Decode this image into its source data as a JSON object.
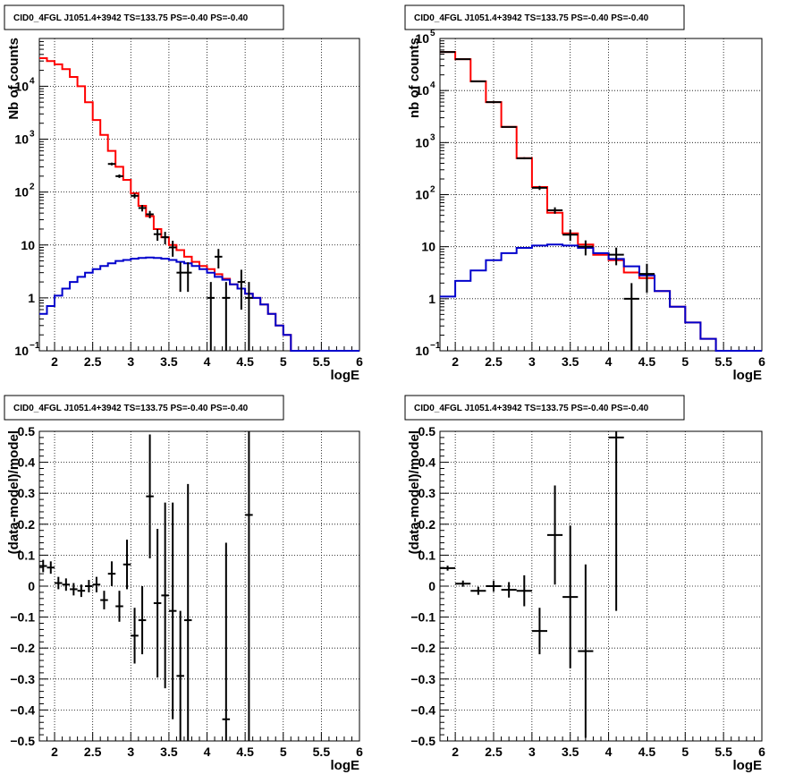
{
  "colors": {
    "data": "#000000",
    "total": "#ff0000",
    "source": "#0000cc",
    "grid": "#000000"
  },
  "chart_data": [
    {
      "type": "line",
      "title": "CID0_4FGL J1051.4+3942 TS=133.75 PS=-0.40 PS=-0.40",
      "xlabel": "logE",
      "ylabel": "Nb of counts",
      "xlim": [
        1.8,
        6
      ],
      "ylim": [
        0.1,
        80000
      ],
      "yscale": "log",
      "grid": true,
      "bin_edges": [
        1.8,
        1.9,
        2.0,
        2.1,
        2.2,
        2.3,
        2.4,
        2.5,
        2.6,
        2.7,
        2.8,
        2.9,
        3.0,
        3.1,
        3.2,
        3.3,
        3.4,
        3.5,
        3.6,
        3.7,
        3.8,
        3.9,
        4.0,
        4.1,
        4.2,
        4.3,
        4.4,
        4.5,
        4.6,
        4.7,
        4.8,
        4.9,
        5.0,
        5.1,
        5.2,
        5.3,
        5.4,
        5.5,
        5.6,
        5.7,
        5.8,
        5.9,
        6.0
      ],
      "xticks": [
        2,
        2.5,
        3,
        3.5,
        4,
        4.5,
        5,
        5.5,
        6
      ],
      "yticks": [
        {
          "v": 0.1,
          "label": "10",
          "exp": "−1"
        },
        {
          "v": 1,
          "label": "1",
          "exp": ""
        },
        {
          "v": 10,
          "label": "10",
          "exp": ""
        },
        {
          "v": 100,
          "label": "10",
          "exp": "2"
        },
        {
          "v": 1000,
          "label": "10",
          "exp": "3"
        },
        {
          "v": 10000,
          "label": "10",
          "exp": "4"
        }
      ],
      "series": [
        {
          "role": "total",
          "values": [
            34000,
            30000,
            26000,
            21000,
            15000,
            10000,
            5000,
            2300,
            1200,
            600,
            300,
            170,
            95,
            55,
            35,
            20,
            14,
            10,
            8,
            6,
            4.8,
            4,
            3.5,
            2.8,
            2.3,
            1.8,
            1.5,
            1.2,
            1.0,
            0.75,
            0.5,
            0.3,
            0.2,
            0.1,
            0.1,
            0.1,
            0.1,
            0.1,
            0.1,
            0.1,
            0.1,
            0.1
          ]
        },
        {
          "role": "source",
          "values": [
            0.5,
            0.7,
            1.1,
            1.5,
            2.0,
            2.5,
            3.0,
            3.5,
            4.0,
            4.5,
            5.0,
            5.2,
            5.5,
            5.7,
            5.8,
            5.7,
            5.5,
            5.2,
            4.8,
            4.5,
            4.0,
            3.5,
            3.0,
            2.5,
            2.2,
            1.8,
            1.5,
            1.2,
            1.0,
            0.75,
            0.5,
            0.3,
            0.2,
            0.1,
            0.1,
            0.1,
            0.1,
            0.1,
            0.1,
            0.1,
            0.1,
            0.1
          ]
        }
      ],
      "points": [
        {
          "x": 2.75,
          "y": 340,
          "err": 20
        },
        {
          "x": 2.85,
          "y": 200,
          "err": 15
        },
        {
          "x": 3.05,
          "y": 85,
          "err": 9
        },
        {
          "x": 3.15,
          "y": 50,
          "err": 7
        },
        {
          "x": 3.25,
          "y": 38,
          "err": 6
        },
        {
          "x": 3.35,
          "y": 16,
          "err": 4
        },
        {
          "x": 3.45,
          "y": 14,
          "err": 3.7
        },
        {
          "x": 3.55,
          "y": 9,
          "err": 3
        },
        {
          "x": 3.65,
          "y": 3,
          "err": 1.7
        },
        {
          "x": 3.75,
          "y": 3,
          "err": 1.7
        },
        {
          "x": 4.05,
          "y": 1,
          "err": 1
        },
        {
          "x": 4.15,
          "y": 6,
          "err": 2.4
        },
        {
          "x": 4.25,
          "y": 1,
          "err": 1
        },
        {
          "x": 4.45,
          "y": 2,
          "err": 1.4
        },
        {
          "x": 4.55,
          "y": 1,
          "err": 1
        }
      ]
    },
    {
      "type": "line",
      "title": "CID0_4FGL J1051.4+3942 TS=133.75 PS=-0.40 PS=-0.40",
      "xlabel": "logE",
      "ylabel": "nb of counts",
      "xlim": [
        1.8,
        6
      ],
      "ylim": [
        0.1,
        100000
      ],
      "yscale": "log",
      "grid": true,
      "bin_edges": [
        1.8,
        2.0,
        2.2,
        2.4,
        2.6,
        2.8,
        3.0,
        3.2,
        3.4,
        3.6,
        3.8,
        4.0,
        4.2,
        4.4,
        4.6,
        4.8,
        5.0,
        5.2,
        5.4,
        5.6,
        5.8,
        6.0
      ],
      "xticks": [
        2,
        2.5,
        3,
        3.5,
        4,
        4.5,
        5,
        5.5,
        6
      ],
      "yticks": [
        {
          "v": 0.1,
          "label": "10",
          "exp": "−1"
        },
        {
          "v": 1,
          "label": "1",
          "exp": ""
        },
        {
          "v": 10,
          "label": "10",
          "exp": ""
        },
        {
          "v": 100,
          "label": "10",
          "exp": "2"
        },
        {
          "v": 1000,
          "label": "10",
          "exp": "3"
        },
        {
          "v": 10000,
          "label": "10",
          "exp": "4"
        },
        {
          "v": 100000,
          "label": "10",
          "exp": "5"
        }
      ],
      "series": [
        {
          "role": "total",
          "values": [
            55000,
            40000,
            15000,
            6000,
            2000,
            500,
            140,
            45,
            18,
            11,
            7,
            5.5,
            3.2,
            2.5,
            1.4,
            0.7,
            0.35,
            0.17,
            0.1,
            0.1,
            0.1
          ]
        },
        {
          "role": "source",
          "values": [
            1.1,
            2.2,
            3.5,
            5.5,
            7.5,
            9.5,
            10.5,
            11,
            10.5,
            9.5,
            7.5,
            5.8,
            4.2,
            2.8,
            1.4,
            0.7,
            0.35,
            0.17,
            0.1,
            0.1,
            0.1
          ]
        }
      ],
      "points": [
        {
          "x": 1.9,
          "y": 55000,
          "err": 235
        },
        {
          "x": 2.1,
          "y": 40000,
          "err": 200
        },
        {
          "x": 2.3,
          "y": 15000,
          "err": 122
        },
        {
          "x": 2.5,
          "y": 6000,
          "err": 77
        },
        {
          "x": 2.7,
          "y": 2000,
          "err": 45
        },
        {
          "x": 2.9,
          "y": 500,
          "err": 22
        },
        {
          "x": 3.1,
          "y": 135,
          "err": 12
        },
        {
          "x": 3.3,
          "y": 50,
          "err": 7
        },
        {
          "x": 3.5,
          "y": 17,
          "err": 4.1
        },
        {
          "x": 3.7,
          "y": 10,
          "err": 3.2
        },
        {
          "x": 4.1,
          "y": 7,
          "err": 2.6
        },
        {
          "x": 4.3,
          "y": 1,
          "err": 1
        },
        {
          "x": 4.5,
          "y": 3,
          "err": 1.7
        }
      ]
    },
    {
      "type": "scatter",
      "title": "CID0_4FGL J1051.4+3942 TS=133.75 PS=-0.40 PS=-0.40",
      "xlabel": "logE",
      "ylabel": "(data-model)/model",
      "xlim": [
        1.8,
        6
      ],
      "ylim": [
        -0.5,
        0.5
      ],
      "yscale": "linear",
      "grid": true,
      "binwidth": 0.1,
      "xticks": [
        2,
        2.5,
        3,
        3.5,
        4,
        4.5,
        5,
        5.5,
        6
      ],
      "yticks": [
        {
          "v": -0.5,
          "label": "−0.5"
        },
        {
          "v": -0.4,
          "label": "−0.4"
        },
        {
          "v": -0.3,
          "label": "−0.3"
        },
        {
          "v": -0.2,
          "label": "−0.2"
        },
        {
          "v": -0.1,
          "label": "−0.1"
        },
        {
          "v": 0,
          "label": "0"
        },
        {
          "v": 0.1,
          "label": "0.1"
        },
        {
          "v": 0.2,
          "label": "0.2"
        },
        {
          "v": 0.3,
          "label": "0.3"
        },
        {
          "v": 0.4,
          "label": "0.4"
        },
        {
          "v": 0.5,
          "label": "0.5"
        }
      ],
      "points": [
        {
          "x": 1.85,
          "y": 0.065,
          "err": 0.02
        },
        {
          "x": 1.95,
          "y": 0.06,
          "err": 0.02
        },
        {
          "x": 2.05,
          "y": 0.01,
          "err": 0.02
        },
        {
          "x": 2.15,
          "y": 0.005,
          "err": 0.02
        },
        {
          "x": 2.25,
          "y": -0.01,
          "err": 0.02
        },
        {
          "x": 2.35,
          "y": -0.015,
          "err": 0.02
        },
        {
          "x": 2.45,
          "y": 0.0,
          "err": 0.02
        },
        {
          "x": 2.55,
          "y": 0.005,
          "err": 0.025
        },
        {
          "x": 2.65,
          "y": -0.045,
          "err": 0.03
        },
        {
          "x": 2.75,
          "y": 0.04,
          "err": 0.04
        },
        {
          "x": 2.85,
          "y": -0.065,
          "err": 0.05
        },
        {
          "x": 2.95,
          "y": 0.07,
          "err": 0.08
        },
        {
          "x": 3.05,
          "y": -0.16,
          "err": 0.09
        },
        {
          "x": 3.15,
          "y": -0.11,
          "err": 0.11
        },
        {
          "x": 3.25,
          "y": 0.29,
          "err": 0.2
        },
        {
          "x": 3.35,
          "y": -0.055,
          "err": 0.24
        },
        {
          "x": 3.45,
          "y": -0.03,
          "err": 0.3
        },
        {
          "x": 3.55,
          "y": -0.08,
          "err": 0.35
        },
        {
          "x": 3.65,
          "y": -0.29,
          "err": 0.21
        },
        {
          "x": 3.75,
          "y": -0.11,
          "err": 0.44
        },
        {
          "x": 4.25,
          "y": -0.43,
          "err": 0.57
        },
        {
          "x": 4.55,
          "y": 0.23,
          "err": 0.9
        }
      ]
    },
    {
      "type": "scatter",
      "title": "CID0_4FGL J1051.4+3942 TS=133.75 PS=-0.40 PS=-0.40",
      "xlabel": "logE",
      "ylabel": "(data-model)/model",
      "xlim": [
        1.8,
        6
      ],
      "ylim": [
        -0.5,
        0.5
      ],
      "yscale": "linear",
      "grid": true,
      "binwidth": 0.2,
      "xticks": [
        2,
        2.5,
        3,
        3.5,
        4,
        4.5,
        5,
        5.5,
        6
      ],
      "yticks": [
        {
          "v": -0.5,
          "label": "−0.5"
        },
        {
          "v": -0.4,
          "label": "−0.4"
        },
        {
          "v": -0.3,
          "label": "−0.3"
        },
        {
          "v": -0.2,
          "label": "−0.2"
        },
        {
          "v": -0.1,
          "label": "−0.1"
        },
        {
          "v": 0,
          "label": "0"
        },
        {
          "v": 0.1,
          "label": "0.1"
        },
        {
          "v": 0.2,
          "label": "0.2"
        },
        {
          "v": 0.3,
          "label": "0.3"
        },
        {
          "v": 0.4,
          "label": "0.4"
        },
        {
          "v": 0.5,
          "label": "0.5"
        }
      ],
      "points": [
        {
          "x": 1.9,
          "y": 0.058,
          "err": 0.008
        },
        {
          "x": 2.1,
          "y": 0.008,
          "err": 0.01
        },
        {
          "x": 2.3,
          "y": -0.015,
          "err": 0.013
        },
        {
          "x": 2.5,
          "y": 0.0,
          "err": 0.018
        },
        {
          "x": 2.7,
          "y": -0.012,
          "err": 0.025
        },
        {
          "x": 2.9,
          "y": -0.015,
          "err": 0.05
        },
        {
          "x": 3.1,
          "y": -0.145,
          "err": 0.075
        },
        {
          "x": 3.3,
          "y": 0.165,
          "err": 0.16
        },
        {
          "x": 3.5,
          "y": -0.035,
          "err": 0.23
        },
        {
          "x": 3.7,
          "y": -0.21,
          "err": 0.28
        },
        {
          "x": 4.1,
          "y": 0.48,
          "err": 0.56
        }
      ]
    }
  ]
}
